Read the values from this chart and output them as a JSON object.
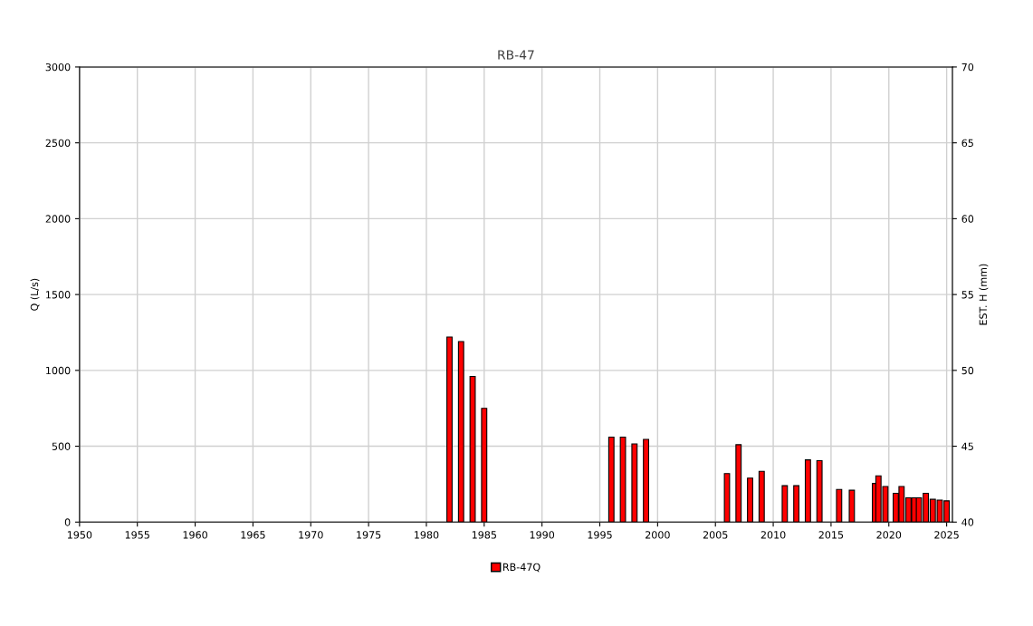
{
  "chart_data": {
    "type": "bar",
    "title": "RB-47",
    "ylabel": "Q (L/s)",
    "y2label": "EST. H (mm)",
    "x": [
      1982,
      1983,
      1984,
      1985,
      1996,
      1997,
      1998,
      1999,
      2006,
      2007,
      2008,
      2009,
      2011,
      2012,
      2013,
      2014,
      2015.7,
      2016.8,
      2018.8,
      2019.1,
      2019.7,
      2020.6,
      2021.1,
      2021.7,
      2022.2,
      2022.6,
      2023.2,
      2023.8,
      2024.4,
      2025.0
    ],
    "series": [
      {
        "name": "RB-47Q",
        "color": "#ff0000",
        "values": [
          1220,
          1190,
          960,
          750,
          560,
          560,
          515,
          545,
          320,
          510,
          290,
          335,
          240,
          240,
          410,
          405,
          215,
          210,
          255,
          305,
          235,
          190,
          235,
          160,
          160,
          160,
          190,
          150,
          145,
          140
        ]
      }
    ],
    "xlim": [
      1950,
      2025.5
    ],
    "xticks": [
      1950,
      1955,
      1960,
      1965,
      1970,
      1975,
      1980,
      1985,
      1990,
      1995,
      2000,
      2005,
      2010,
      2015,
      2020,
      2025
    ],
    "ylim": [
      0,
      3000
    ],
    "yticks": [
      0,
      500,
      1000,
      1500,
      2000,
      2500,
      3000
    ],
    "y2lim": [
      40,
      70
    ],
    "y2ticks": [
      40,
      45,
      50,
      55,
      60,
      65,
      70
    ],
    "grid": true,
    "legend": "bottom"
  }
}
